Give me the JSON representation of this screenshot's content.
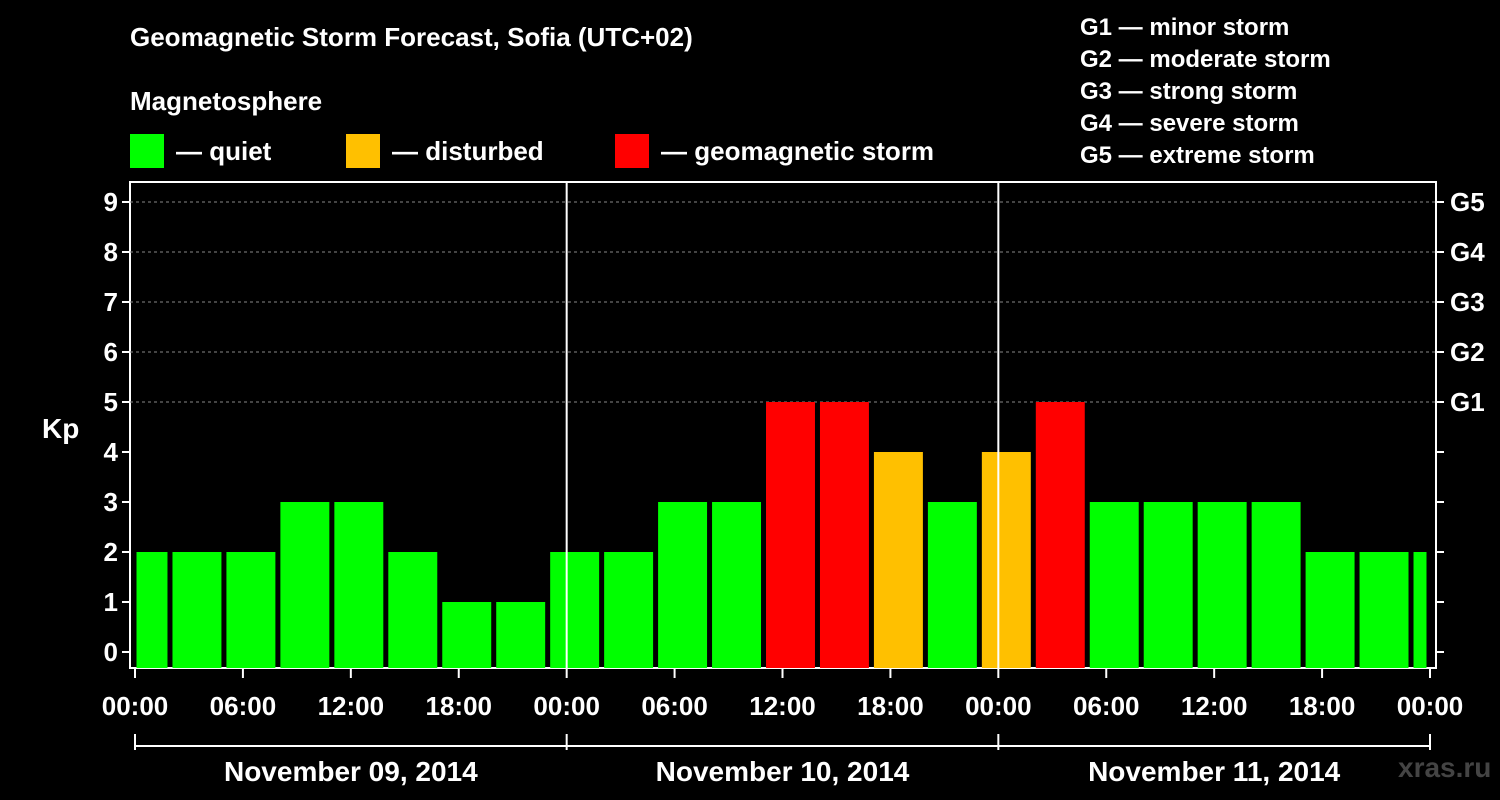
{
  "title": "Geomagnetic Storm Forecast, Sofia (UTC+02)",
  "subtitle": "Magnetosphere",
  "legend": [
    {
      "label": "— quiet",
      "color": "#00ff00"
    },
    {
      "label": "— disturbed",
      "color": "#ffc000"
    },
    {
      "label": "— geomagnetic storm",
      "color": "#ff0000"
    }
  ],
  "scale": [
    "G1 — minor storm",
    "G2 — moderate storm",
    "G3 — strong storm",
    "G4 — severe storm",
    "G5 — extreme storm"
  ],
  "watermark": "xras.ru",
  "chart_data": {
    "type": "bar",
    "title": "Geomagnetic Storm Forecast, Sofia (UTC+02)",
    "ylabel": "Kp",
    "ylim": [
      0,
      9
    ],
    "yticks": [
      "0",
      "1",
      "2",
      "3",
      "4",
      "5",
      "6",
      "7",
      "8",
      "9"
    ],
    "right_ticks": [
      {
        "kp": 5,
        "label": "G1"
      },
      {
        "kp": 6,
        "label": "G2"
      },
      {
        "kp": 7,
        "label": "G3"
      },
      {
        "kp": 8,
        "label": "G4"
      },
      {
        "kp": 9,
        "label": "G5"
      }
    ],
    "xlim_hours": [
      0,
      72
    ],
    "xtick_labels": [
      "00:00",
      "06:00",
      "12:00",
      "18:00",
      "00:00",
      "06:00",
      "12:00",
      "18:00",
      "00:00",
      "06:00",
      "12:00",
      "18:00",
      "00:00"
    ],
    "days": [
      "November 09, 2014",
      "November 10, 2014",
      "November 11, 2014"
    ],
    "bars": [
      {
        "start": 0,
        "end": 2,
        "kp": 2,
        "level": "quiet"
      },
      {
        "start": 2,
        "end": 5,
        "kp": 2,
        "level": "quiet"
      },
      {
        "start": 5,
        "end": 8,
        "kp": 2,
        "level": "quiet"
      },
      {
        "start": 8,
        "end": 11,
        "kp": 3,
        "level": "quiet"
      },
      {
        "start": 11,
        "end": 14,
        "kp": 3,
        "level": "quiet"
      },
      {
        "start": 14,
        "end": 17,
        "kp": 2,
        "level": "quiet"
      },
      {
        "start": 17,
        "end": 20,
        "kp": 1,
        "level": "quiet"
      },
      {
        "start": 20,
        "end": 23,
        "kp": 1,
        "level": "quiet"
      },
      {
        "start": 23,
        "end": 26,
        "kp": 2,
        "level": "quiet"
      },
      {
        "start": 26,
        "end": 29,
        "kp": 2,
        "level": "quiet"
      },
      {
        "start": 29,
        "end": 32,
        "kp": 3,
        "level": "quiet"
      },
      {
        "start": 32,
        "end": 35,
        "kp": 3,
        "level": "quiet"
      },
      {
        "start": 35,
        "end": 38,
        "kp": 5,
        "level": "storm"
      },
      {
        "start": 38,
        "end": 41,
        "kp": 5,
        "level": "storm"
      },
      {
        "start": 41,
        "end": 44,
        "kp": 4,
        "level": "disturbed"
      },
      {
        "start": 44,
        "end": 47,
        "kp": 3,
        "level": "quiet"
      },
      {
        "start": 47,
        "end": 50,
        "kp": 4,
        "level": "disturbed"
      },
      {
        "start": 50,
        "end": 53,
        "kp": 5,
        "level": "storm"
      },
      {
        "start": 53,
        "end": 56,
        "kp": 3,
        "level": "quiet"
      },
      {
        "start": 56,
        "end": 59,
        "kp": 3,
        "level": "quiet"
      },
      {
        "start": 59,
        "end": 62,
        "kp": 3,
        "level": "quiet"
      },
      {
        "start": 62,
        "end": 65,
        "kp": 3,
        "level": "quiet"
      },
      {
        "start": 65,
        "end": 68,
        "kp": 2,
        "level": "quiet"
      },
      {
        "start": 68,
        "end": 71,
        "kp": 2,
        "level": "quiet"
      },
      {
        "start": 71,
        "end": 72,
        "kp": 2,
        "level": "quiet"
      }
    ],
    "level_colors": {
      "quiet": "#00ff00",
      "disturbed": "#ffc000",
      "storm": "#ff0000"
    }
  }
}
